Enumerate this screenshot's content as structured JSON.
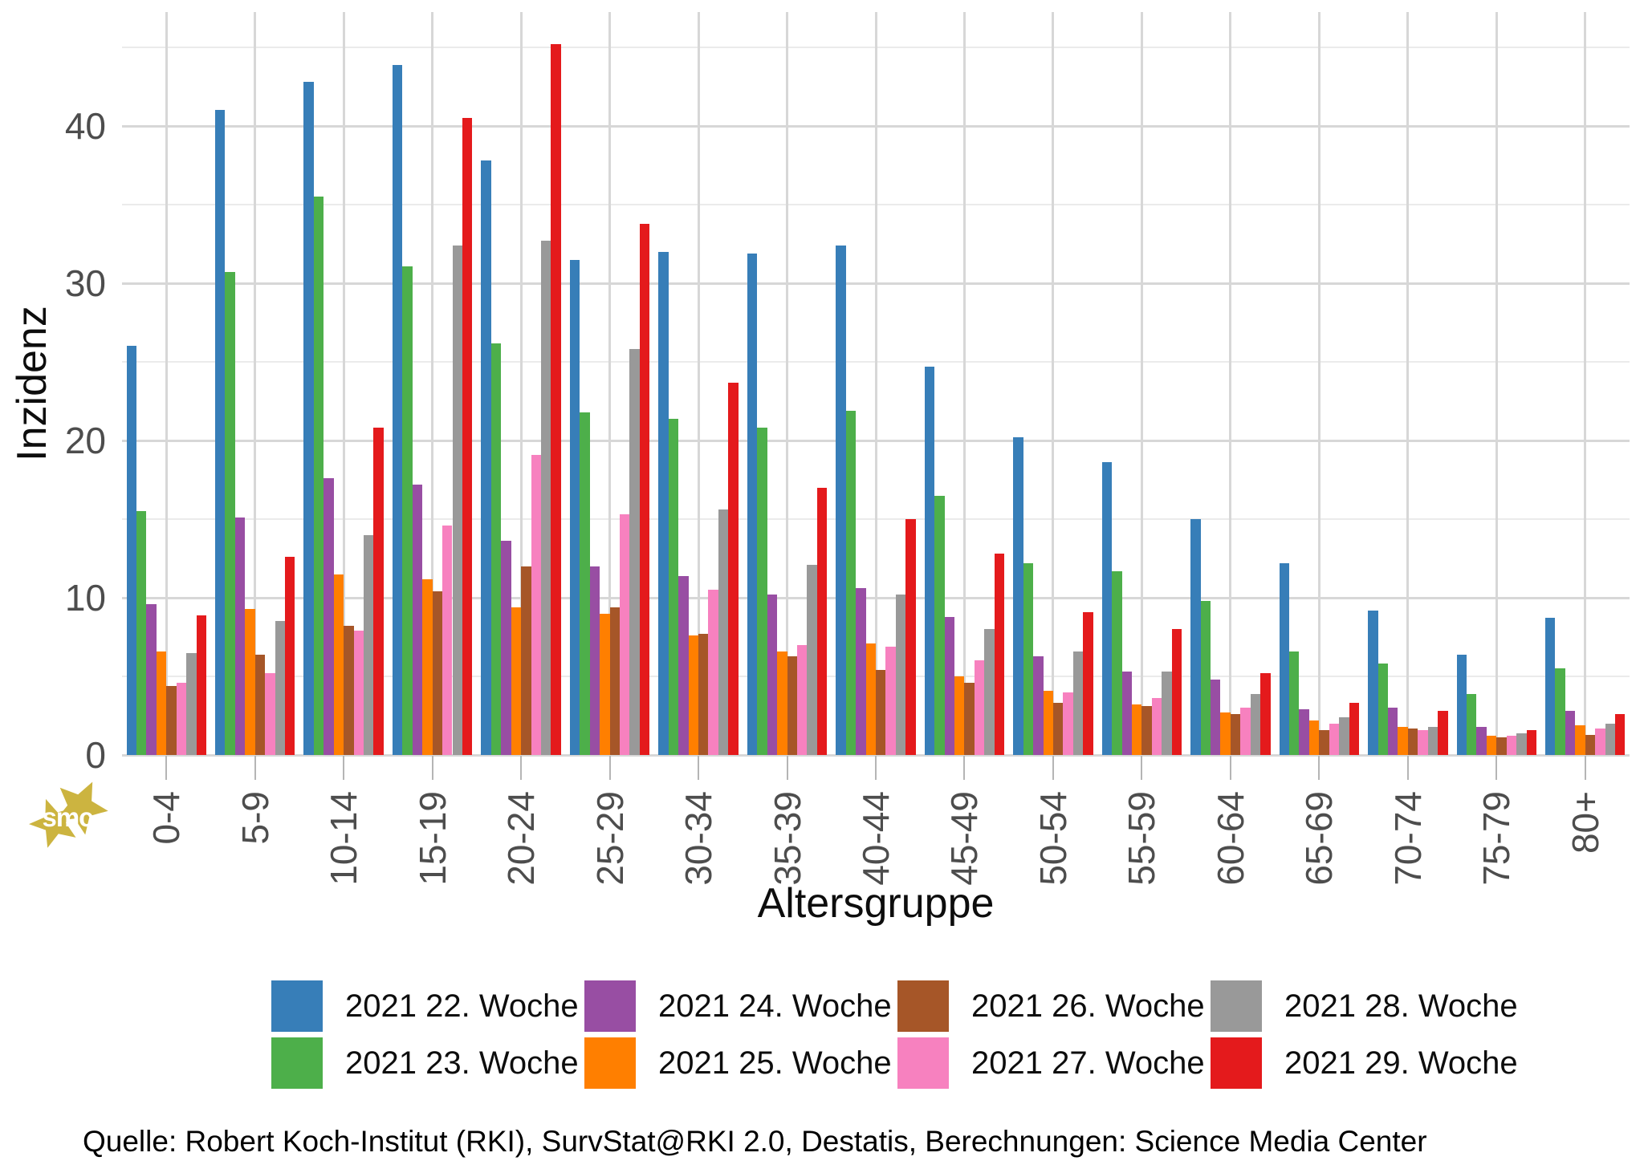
{
  "chart_data": {
    "type": "bar",
    "title": "",
    "xlabel": "Altersgruppe",
    "ylabel": "Inzidenz",
    "ylim": [
      0,
      47.25
    ],
    "yticks": [
      0,
      10,
      20,
      30,
      40
    ],
    "minor_yticks": [
      5,
      15,
      25,
      35,
      45
    ],
    "grid": true,
    "legend_position": "bottom",
    "categories": [
      "0-4",
      "5-9",
      "10-14",
      "15-19",
      "20-24",
      "25-29",
      "30-34",
      "35-39",
      "40-44",
      "45-49",
      "50-54",
      "55-59",
      "60-64",
      "65-69",
      "70-74",
      "75-79",
      "80+"
    ],
    "series": [
      {
        "name": "2021 22. Woche",
        "color": "#377eb8",
        "values": [
          26.0,
          41.0,
          42.8,
          43.9,
          37.8,
          31.5,
          32.0,
          31.9,
          32.4,
          24.7,
          20.2,
          18.6,
          15.0,
          12.2,
          9.2,
          6.4,
          8.7
        ]
      },
      {
        "name": "2021 23. Woche",
        "color": "#4daf4a",
        "values": [
          15.5,
          30.7,
          35.5,
          31.1,
          26.2,
          21.8,
          21.4,
          20.8,
          21.9,
          16.5,
          12.2,
          11.7,
          9.8,
          6.6,
          5.8,
          3.9,
          5.5
        ]
      },
      {
        "name": "2021 24. Woche",
        "color": "#984ea3",
        "values": [
          9.6,
          15.1,
          17.6,
          17.2,
          13.6,
          12.0,
          11.4,
          10.2,
          10.6,
          8.8,
          6.3,
          5.3,
          4.8,
          2.9,
          3.0,
          1.8,
          2.8
        ]
      },
      {
        "name": "2021 25. Woche",
        "color": "#ff7f00",
        "values": [
          6.6,
          9.3,
          11.5,
          11.2,
          9.4,
          9.0,
          7.6,
          6.6,
          7.1,
          5.0,
          4.1,
          3.2,
          2.7,
          2.2,
          1.8,
          1.2,
          1.9
        ]
      },
      {
        "name": "2021 26. Woche",
        "color": "#a65628",
        "values": [
          4.4,
          6.4,
          8.2,
          10.4,
          12.0,
          9.4,
          7.7,
          6.3,
          5.4,
          4.6,
          3.3,
          3.1,
          2.6,
          1.6,
          1.7,
          1.1,
          1.3
        ]
      },
      {
        "name": "2021 27. Woche",
        "color": "#f781bf",
        "values": [
          4.6,
          5.2,
          7.9,
          14.6,
          19.1,
          15.3,
          10.5,
          7.0,
          6.9,
          6.0,
          4.0,
          3.6,
          3.0,
          2.0,
          1.6,
          1.2,
          1.7
        ]
      },
      {
        "name": "2021 28. Woche",
        "color": "#999999",
        "values": [
          6.5,
          8.5,
          14.0,
          32.4,
          32.7,
          25.8,
          15.6,
          12.1,
          10.2,
          8.0,
          6.6,
          5.3,
          3.9,
          2.4,
          1.8,
          1.4,
          2.0
        ]
      },
      {
        "name": "2021 29. Woche",
        "color": "#e41a1c",
        "values": [
          8.9,
          12.6,
          20.8,
          40.5,
          45.2,
          33.8,
          23.7,
          17.0,
          15.0,
          12.8,
          9.1,
          8.0,
          5.2,
          3.3,
          2.8,
          1.6,
          2.6
        ]
      }
    ]
  },
  "branding": {
    "logo_text": "smc",
    "logo_color": "#ccb440"
  },
  "footer": {
    "source": "Quelle: Robert Koch-Institut (RKI), SurvStat@RKI 2.0, Destatis, Berechnungen: Science Media Center"
  },
  "colors": {
    "grid_major": "#d7d7d7",
    "grid_minor": "#ebebeb",
    "tick_mark": "#b5b5b5",
    "tick_label": "#4d4d4d",
    "axis_title": "#0d0d0d",
    "legend_text": "#0d0d0d",
    "background": "#ffffff"
  }
}
